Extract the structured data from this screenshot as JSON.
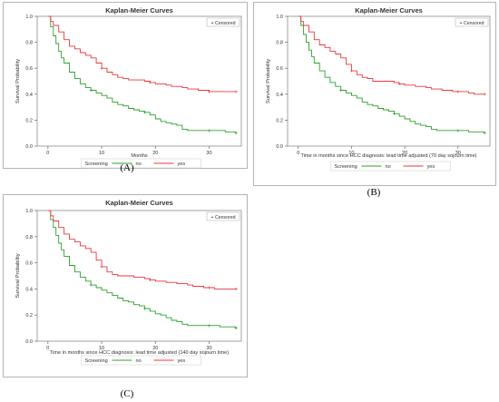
{
  "panels": [
    {
      "id": "A",
      "label": "(A)",
      "title": "Kaplan-Meier Curves",
      "xlabel": "Months",
      "ylabel": "Survival Probability",
      "legend_box": "+ Censored",
      "legend_title": "Screening"
    },
    {
      "id": "B",
      "label": "(B)",
      "title": "Kaplan-Meier Curves",
      "xlabel": "Time in months since HCC diagnosis: lead time adjusted (70 day sojourn time)",
      "ylabel": "Survival Probability",
      "legend_box": "+ Censored",
      "legend_title": "Screening"
    },
    {
      "id": "C",
      "label": "(C)",
      "title": "Kaplan-Meier Curves",
      "xlabel": "Time in months since HCC diagnosis: lead time adjusted (140 day sojourn time)",
      "ylabel": "Survival Probability",
      "legend_box": "+ Censored",
      "legend_title": "Screening"
    }
  ],
  "chart_data": [
    {
      "type": "line",
      "title": "Kaplan-Meier Curves",
      "xlabel": "Months",
      "ylabel": "Survival Probability",
      "xlim": [
        -2,
        36
      ],
      "ylim": [
        0,
        1
      ],
      "x_ticks": [
        0,
        10,
        20,
        30
      ],
      "y_ticks": [
        0.0,
        0.2,
        0.4,
        0.6,
        0.8,
        1.0
      ],
      "y_tick_labels": [
        "0.0",
        "0.2",
        "0.4",
        "0.6",
        "0.8",
        "1.0"
      ],
      "legend_title": "Screening",
      "legend_position": "bottom",
      "series": [
        {
          "name": "no",
          "color": "#2ca02c",
          "x": [
            0,
            0.5,
            1,
            1.5,
            2,
            2.5,
            3,
            4,
            5,
            6,
            7,
            8,
            9,
            10,
            11,
            12,
            13,
            14,
            15,
            16,
            17,
            18,
            19,
            20,
            21,
            22,
            23,
            24,
            25,
            26,
            27,
            28,
            29,
            30,
            31,
            32,
            33,
            34,
            35
          ],
          "y": [
            1.0,
            0.92,
            0.85,
            0.79,
            0.73,
            0.68,
            0.64,
            0.57,
            0.52,
            0.48,
            0.45,
            0.43,
            0.41,
            0.39,
            0.37,
            0.34,
            0.32,
            0.31,
            0.29,
            0.28,
            0.27,
            0.26,
            0.24,
            0.21,
            0.19,
            0.18,
            0.17,
            0.16,
            0.13,
            0.12,
            0.12,
            0.12,
            0.12,
            0.12,
            0.12,
            0.12,
            0.11,
            0.11,
            0.1
          ]
        },
        {
          "name": "yes",
          "color": "#e8393e",
          "x": [
            0,
            0.5,
            1,
            2,
            3,
            4,
            5,
            6,
            7,
            8,
            9,
            10,
            11,
            12,
            13,
            14,
            15,
            16,
            17,
            18,
            19,
            20,
            21,
            22,
            23,
            24,
            25,
            26,
            27,
            28,
            29,
            30,
            31,
            32,
            33,
            34,
            35
          ],
          "y": [
            1.0,
            0.96,
            0.93,
            0.88,
            0.82,
            0.77,
            0.75,
            0.72,
            0.7,
            0.68,
            0.64,
            0.6,
            0.57,
            0.55,
            0.53,
            0.52,
            0.51,
            0.51,
            0.51,
            0.5,
            0.49,
            0.48,
            0.48,
            0.47,
            0.46,
            0.46,
            0.45,
            0.44,
            0.44,
            0.43,
            0.43,
            0.42,
            0.42,
            0.42,
            0.42,
            0.42,
            0.42
          ]
        }
      ]
    },
    {
      "type": "line",
      "title": "Kaplan-Meier Curves",
      "xlabel": "Time in months since HCC diagnosis: lead time adjusted (70 day sojourn time)",
      "ylabel": "Survival Probability",
      "xlim": [
        -2,
        36
      ],
      "ylim": [
        0,
        1
      ],
      "x_ticks": [
        0,
        10,
        20,
        30
      ],
      "y_ticks": [
        0.0,
        0.2,
        0.4,
        0.6,
        0.8,
        1.0
      ],
      "y_tick_labels": [
        "0.0",
        "0.2",
        "0.4",
        "0.6",
        "0.8",
        "1.0"
      ],
      "legend_title": "Screening",
      "legend_position": "bottom",
      "series": [
        {
          "name": "no",
          "color": "#2ca02c",
          "x": [
            0,
            0.5,
            1,
            1.5,
            2,
            2.5,
            3,
            4,
            5,
            6,
            7,
            8,
            9,
            10,
            11,
            12,
            13,
            14,
            15,
            16,
            17,
            18,
            19,
            20,
            21,
            22,
            23,
            24,
            25,
            26,
            27,
            28,
            29,
            30,
            31,
            32,
            33,
            34,
            35
          ],
          "y": [
            1.0,
            0.93,
            0.86,
            0.8,
            0.74,
            0.69,
            0.64,
            0.58,
            0.53,
            0.49,
            0.46,
            0.43,
            0.41,
            0.39,
            0.37,
            0.34,
            0.32,
            0.31,
            0.29,
            0.28,
            0.27,
            0.25,
            0.23,
            0.21,
            0.19,
            0.17,
            0.16,
            0.15,
            0.13,
            0.12,
            0.12,
            0.12,
            0.12,
            0.12,
            0.12,
            0.11,
            0.11,
            0.11,
            0.1
          ]
        },
        {
          "name": "yes",
          "color": "#e8393e",
          "x": [
            0,
            0.5,
            1,
            2,
            3,
            4,
            5,
            6,
            7,
            8,
            9,
            10,
            11,
            12,
            13,
            14,
            15,
            16,
            17,
            18,
            19,
            20,
            21,
            22,
            23,
            24,
            25,
            26,
            27,
            28,
            29,
            30,
            31,
            32,
            33,
            34,
            35
          ],
          "y": [
            1.0,
            0.96,
            0.93,
            0.88,
            0.82,
            0.78,
            0.76,
            0.73,
            0.71,
            0.68,
            0.63,
            0.58,
            0.55,
            0.53,
            0.52,
            0.5,
            0.5,
            0.5,
            0.5,
            0.49,
            0.48,
            0.47,
            0.47,
            0.46,
            0.46,
            0.45,
            0.44,
            0.44,
            0.43,
            0.43,
            0.42,
            0.42,
            0.42,
            0.41,
            0.4,
            0.4,
            0.4
          ]
        }
      ]
    },
    {
      "type": "line",
      "title": "Kaplan-Meier Curves",
      "xlabel": "Time in months since HCC diagnosis: lead time adjusted (140 day sojourn time)",
      "ylabel": "Survival Probability",
      "xlim": [
        -2,
        36
      ],
      "ylim": [
        0,
        1
      ],
      "x_ticks": [
        0,
        10,
        20,
        30
      ],
      "y_ticks": [
        0.0,
        0.2,
        0.4,
        0.6,
        0.8,
        1.0
      ],
      "y_tick_labels": [
        "0.0",
        "0.2",
        "0.4",
        "0.6",
        "0.8",
        "1.0"
      ],
      "legend_title": "Screening",
      "legend_position": "bottom",
      "series": [
        {
          "name": "no",
          "color": "#2ca02c",
          "x": [
            0,
            0.5,
            1,
            1.5,
            2,
            2.5,
            3,
            4,
            5,
            6,
            7,
            8,
            9,
            10,
            11,
            12,
            13,
            14,
            15,
            16,
            17,
            18,
            19,
            20,
            21,
            22,
            23,
            24,
            25,
            26,
            27,
            28,
            29,
            30,
            31,
            32,
            33,
            34,
            35
          ],
          "y": [
            1.0,
            0.93,
            0.87,
            0.81,
            0.75,
            0.7,
            0.65,
            0.58,
            0.53,
            0.49,
            0.46,
            0.43,
            0.41,
            0.39,
            0.37,
            0.35,
            0.33,
            0.31,
            0.3,
            0.28,
            0.27,
            0.25,
            0.23,
            0.21,
            0.2,
            0.18,
            0.16,
            0.15,
            0.13,
            0.12,
            0.12,
            0.12,
            0.12,
            0.12,
            0.12,
            0.11,
            0.11,
            0.11,
            0.1
          ]
        },
        {
          "name": "yes",
          "color": "#e8393e",
          "x": [
            0,
            0.5,
            1,
            2,
            3,
            4,
            5,
            6,
            7,
            8,
            9,
            10,
            11,
            12,
            13,
            14,
            15,
            16,
            17,
            18,
            19,
            20,
            21,
            22,
            23,
            24,
            25,
            26,
            27,
            28,
            29,
            30,
            31,
            32,
            33,
            34,
            35
          ],
          "y": [
            1.0,
            0.96,
            0.92,
            0.87,
            0.82,
            0.78,
            0.76,
            0.73,
            0.71,
            0.68,
            0.62,
            0.57,
            0.53,
            0.51,
            0.5,
            0.5,
            0.5,
            0.49,
            0.49,
            0.48,
            0.47,
            0.46,
            0.46,
            0.45,
            0.45,
            0.44,
            0.44,
            0.43,
            0.42,
            0.42,
            0.41,
            0.41,
            0.4,
            0.4,
            0.4,
            0.4,
            0.4
          ]
        }
      ]
    }
  ]
}
